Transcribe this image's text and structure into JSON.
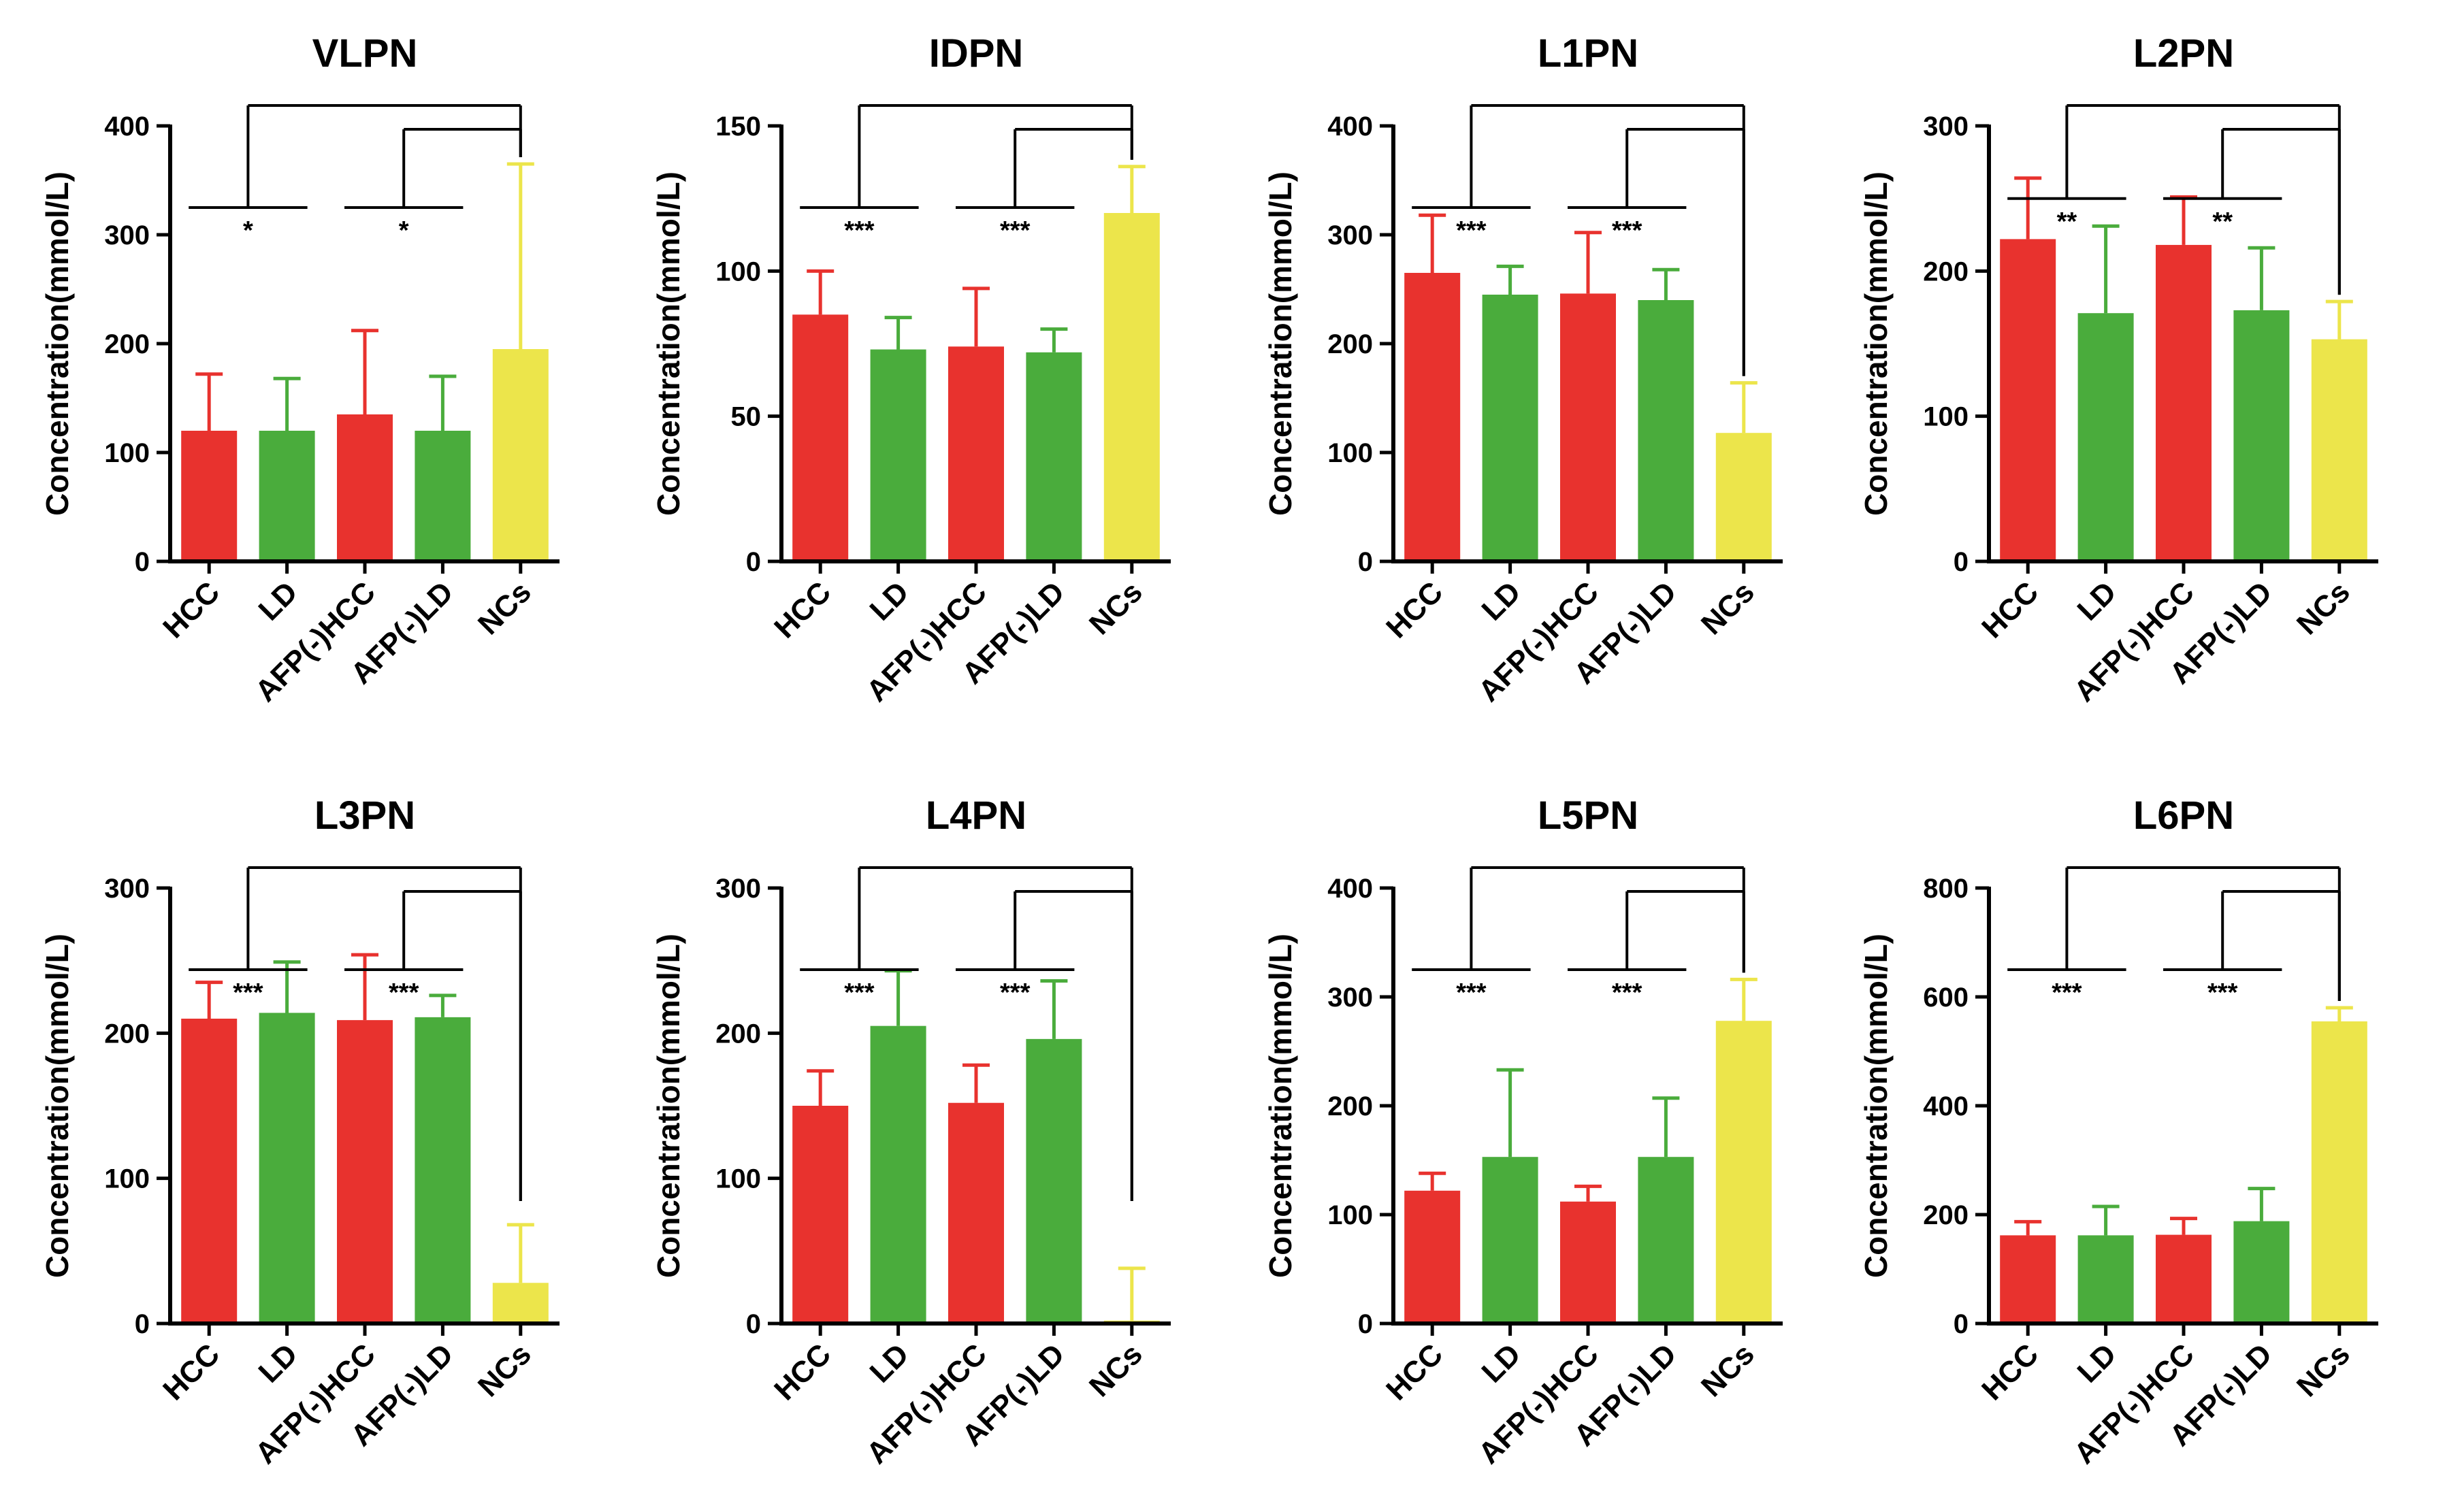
{
  "colors": {
    "HCC": "#e8322e",
    "LD": "#4aac3c",
    "AFP(-)HCC": "#e8322e",
    "AFP(-)LD": "#4aac3c",
    "NCs": "#ece54b",
    "axis": "#000000"
  },
  "chart_data": [
    {
      "type": "bar",
      "title": "VLPN",
      "ylabel": "Concentration(mmol/L)",
      "categories": [
        "HCC",
        "LD",
        "AFP(-)HCC",
        "AFP(-)LD",
        "NCs"
      ],
      "values": [
        120,
        120,
        135,
        120,
        195
      ],
      "errors": [
        52,
        48,
        77,
        50,
        170
      ],
      "ylim": [
        0,
        400
      ],
      "yticks": [
        0,
        100,
        200,
        300,
        400
      ],
      "significance": [
        {
          "text": "*",
          "pair": [
            "HCC",
            "LD"
          ],
          "vs": "NCs"
        },
        {
          "text": "*",
          "pair": [
            "AFP(-)HCC",
            "AFP(-)LD"
          ],
          "vs": "NCs"
        }
      ]
    },
    {
      "type": "bar",
      "title": "IDPN",
      "ylabel": "Concentration(mmol/L)",
      "categories": [
        "HCC",
        "LD",
        "AFP(-)HCC",
        "AFP(-)LD",
        "NCs"
      ],
      "values": [
        85,
        73,
        74,
        72,
        120
      ],
      "errors": [
        15,
        11,
        20,
        8,
        16
      ],
      "ylim": [
        0,
        150
      ],
      "yticks": [
        0,
        50,
        100,
        150
      ],
      "significance": [
        {
          "text": "***",
          "pair": [
            "HCC",
            "LD"
          ],
          "vs": "NCs"
        },
        {
          "text": "***",
          "pair": [
            "AFP(-)HCC",
            "AFP(-)LD"
          ],
          "vs": "NCs"
        }
      ]
    },
    {
      "type": "bar",
      "title": "L1PN",
      "ylabel": "Concentration(mmol/L)",
      "categories": [
        "HCC",
        "LD",
        "AFP(-)HCC",
        "AFP(-)LD",
        "NCs"
      ],
      "values": [
        265,
        245,
        246,
        240,
        118
      ],
      "errors": [
        53,
        26,
        56,
        28,
        46
      ],
      "ylim": [
        0,
        400
      ],
      "yticks": [
        0,
        100,
        200,
        300,
        400
      ],
      "significance": [
        {
          "text": "***",
          "pair": [
            "HCC",
            "LD"
          ],
          "vs": "NCs"
        },
        {
          "text": "***",
          "pair": [
            "AFP(-)HCC",
            "AFP(-)LD"
          ],
          "vs": "NCs"
        }
      ]
    },
    {
      "type": "bar",
      "title": "L2PN",
      "ylabel": "Concentration(mmol/L)",
      "categories": [
        "HCC",
        "LD",
        "AFP(-)HCC",
        "AFP(-)LD",
        "NCs"
      ],
      "values": [
        222,
        171,
        218,
        173,
        153
      ],
      "errors": [
        42,
        60,
        33,
        43,
        26
      ],
      "ylim": [
        0,
        300
      ],
      "yticks": [
        0,
        100,
        200,
        300
      ],
      "significance": [
        {
          "text": "**",
          "pair": [
            "HCC",
            "LD"
          ],
          "vs": "NCs"
        },
        {
          "text": "**",
          "pair": [
            "AFP(-)HCC",
            "AFP(-)LD"
          ],
          "vs": "NCs"
        }
      ]
    },
    {
      "type": "bar",
      "title": "L3PN",
      "ylabel": "Concentration(mmol/L)",
      "categories": [
        "HCC",
        "LD",
        "AFP(-)HCC",
        "AFP(-)LD",
        "NCs"
      ],
      "values": [
        210,
        214,
        209,
        211,
        28
      ],
      "errors": [
        25,
        35,
        45,
        15,
        40
      ],
      "ylim": [
        0,
        300
      ],
      "yticks": [
        0,
        100,
        200,
        300
      ],
      "significance": [
        {
          "text": "***",
          "pair": [
            "HCC",
            "LD"
          ],
          "vs": "NCs"
        },
        {
          "text": "***",
          "pair": [
            "AFP(-)HCC",
            "AFP(-)LD"
          ],
          "vs": "NCs"
        }
      ]
    },
    {
      "type": "bar",
      "title": "L4PN",
      "ylabel": "Concentration(mmol/L)",
      "categories": [
        "HCC",
        "LD",
        "AFP(-)HCC",
        "AFP(-)LD",
        "NCs"
      ],
      "values": [
        150,
        205,
        152,
        196,
        2
      ],
      "errors": [
        24,
        38,
        26,
        40,
        36
      ],
      "ylim": [
        0,
        300
      ],
      "yticks": [
        0,
        100,
        200,
        300
      ],
      "significance": [
        {
          "text": "***",
          "pair": [
            "HCC",
            "LD"
          ],
          "vs": "NCs"
        },
        {
          "text": "***",
          "pair": [
            "AFP(-)HCC",
            "AFP(-)LD"
          ],
          "vs": "NCs"
        }
      ]
    },
    {
      "type": "bar",
      "title": "L5PN",
      "ylabel": "Concentration(mmol/L)",
      "categories": [
        "HCC",
        "LD",
        "AFP(-)HCC",
        "AFP(-)LD",
        "NCs"
      ],
      "values": [
        122,
        153,
        112,
        153,
        278
      ],
      "errors": [
        16,
        80,
        14,
        54,
        38
      ],
      "ylim": [
        0,
        400
      ],
      "yticks": [
        0,
        100,
        200,
        300,
        400
      ],
      "significance": [
        {
          "text": "***",
          "pair": [
            "HCC",
            "LD"
          ],
          "vs": "NCs"
        },
        {
          "text": "***",
          "pair": [
            "AFP(-)HCC",
            "AFP(-)LD"
          ],
          "vs": "NCs"
        }
      ]
    },
    {
      "type": "bar",
      "title": "L6PN",
      "ylabel": "Concentration(mmol/L)",
      "categories": [
        "HCC",
        "LD",
        "AFP(-)HCC",
        "AFP(-)LD",
        "NCs"
      ],
      "values": [
        162,
        162,
        163,
        188,
        555
      ],
      "errors": [
        25,
        53,
        30,
        60,
        25
      ],
      "ylim": [
        0,
        800
      ],
      "yticks": [
        0,
        200,
        400,
        600,
        800
      ],
      "significance": [
        {
          "text": "***",
          "pair": [
            "HCC",
            "LD"
          ],
          "vs": "NCs"
        },
        {
          "text": "***",
          "pair": [
            "AFP(-)HCC",
            "AFP(-)LD"
          ],
          "vs": "NCs"
        }
      ]
    }
  ]
}
